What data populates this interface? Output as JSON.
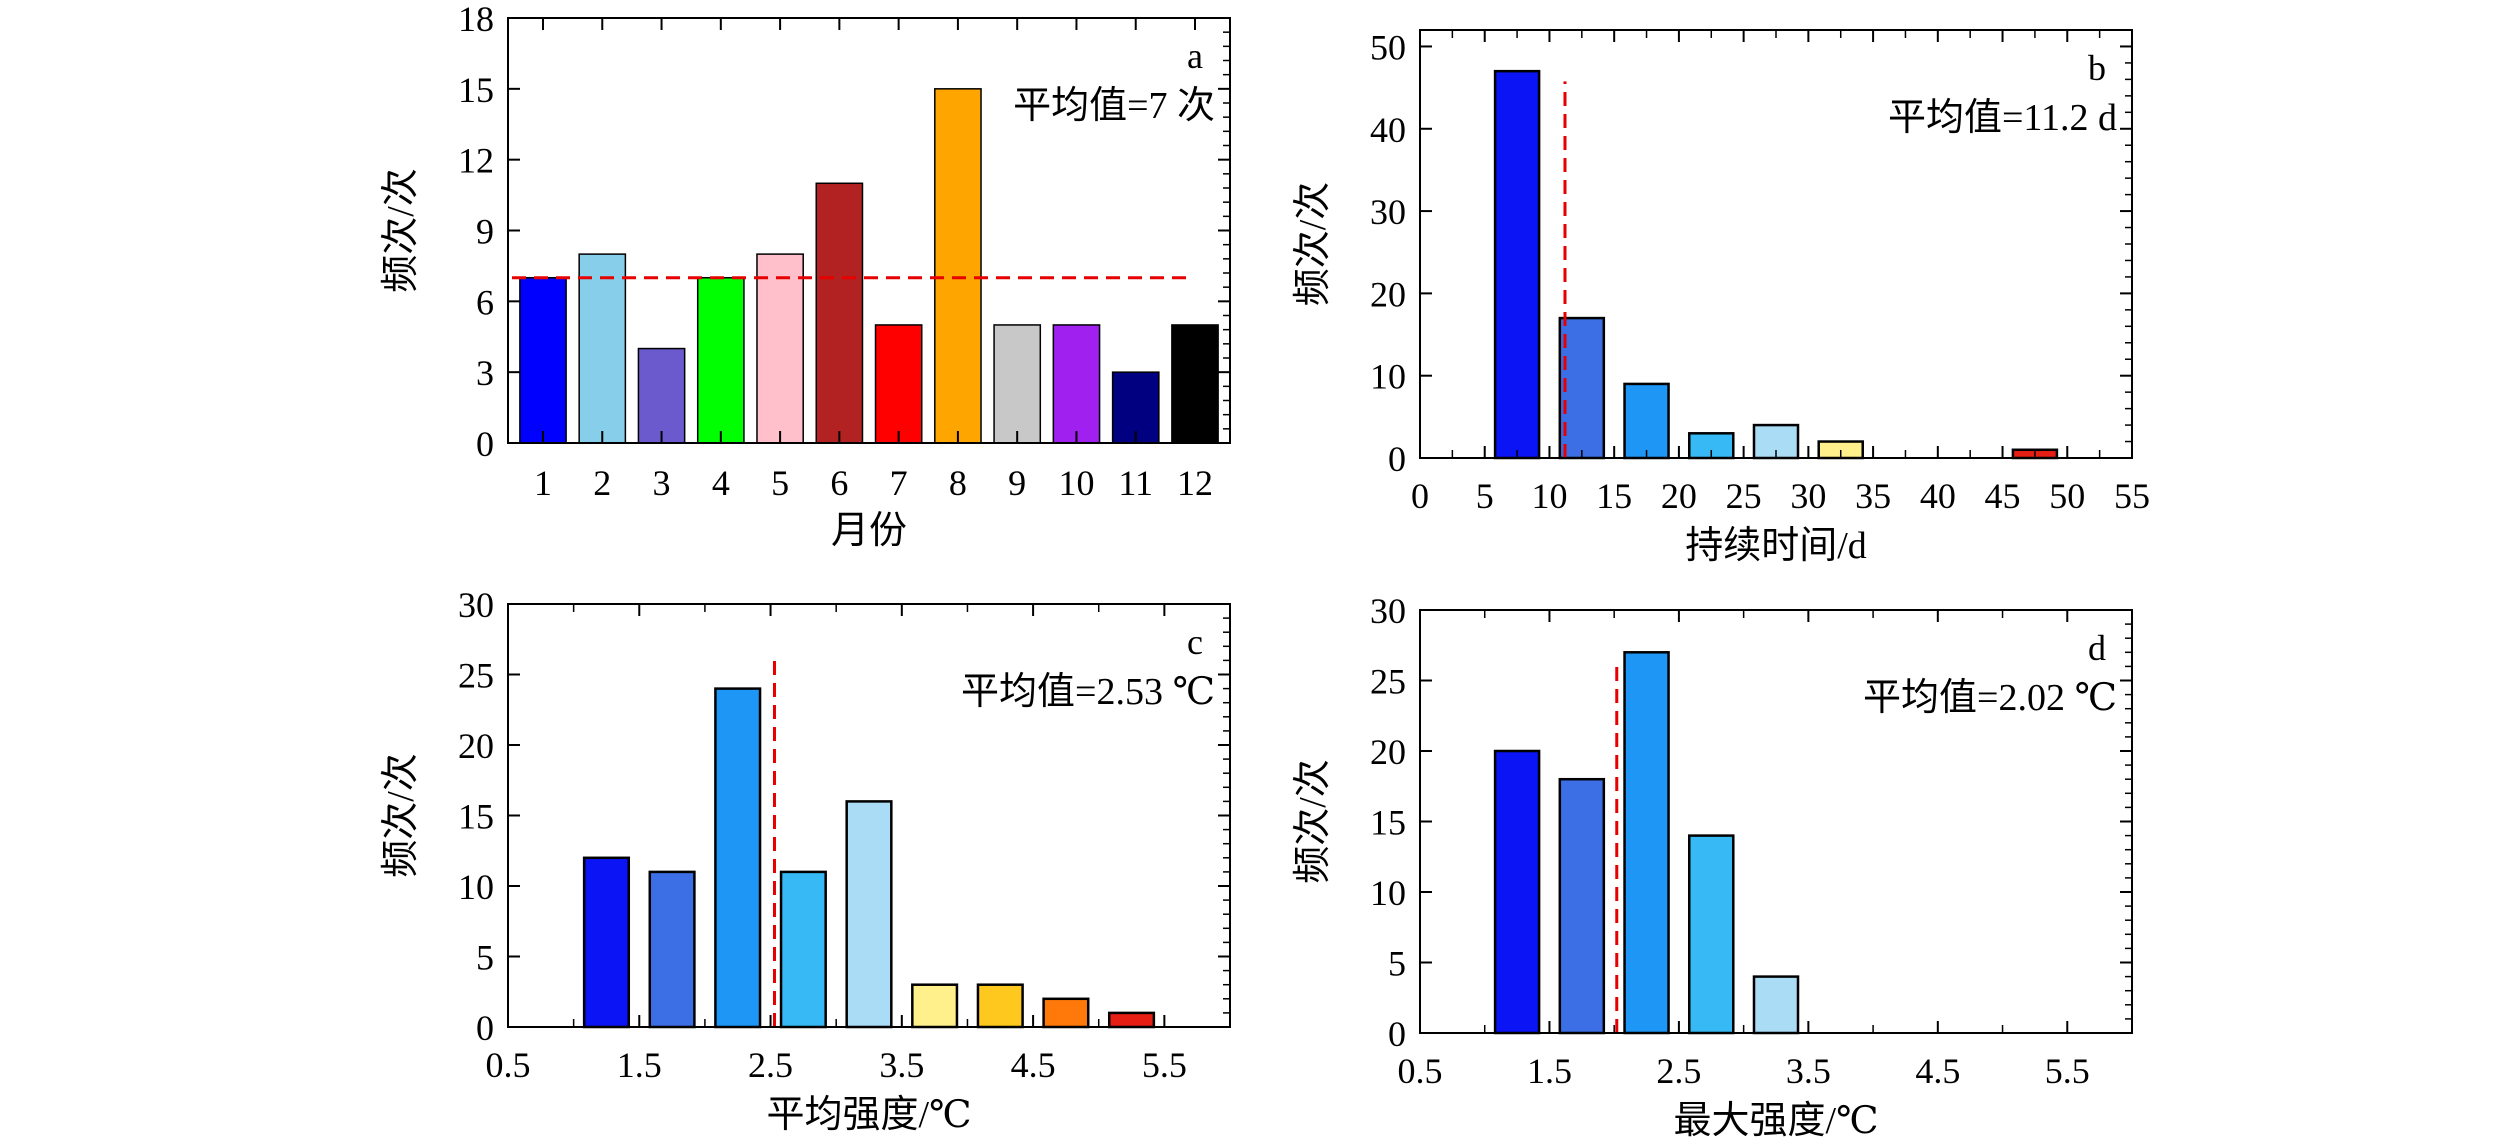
{
  "chart_data": [
    {
      "panel_label": "a",
      "type": "bar",
      "xlabel": "月份",
      "ylabel": "频次/次",
      "mean_label": "平均值=7 次",
      "mean_value": 7,
      "ylim": [
        0,
        18
      ],
      "yticks": [
        0,
        3,
        6,
        9,
        12,
        15,
        18
      ],
      "categories": [
        "1",
        "2",
        "3",
        "4",
        "5",
        "6",
        "7",
        "8",
        "9",
        "10",
        "11",
        "12"
      ],
      "values": [
        7,
        8,
        4,
        7,
        8,
        11,
        5,
        15,
        5,
        5,
        3,
        5
      ],
      "colors": [
        "#0000ff",
        "#87ceeb",
        "#6a5acd",
        "#00ff00",
        "#ffc0cb",
        "#b22222",
        "#ff0000",
        "#ffa500",
        "#c8c8c8",
        "#a020f0",
        "#000080",
        "#000000"
      ]
    },
    {
      "panel_label": "b",
      "type": "bar",
      "xlabel": "持续时间/d",
      "ylabel": "频次/次",
      "mean_label": "平均值=11.2 d",
      "mean_value": 11.2,
      "xlim": [
        0,
        55
      ],
      "xticks": [
        0,
        5,
        10,
        15,
        20,
        25,
        30,
        35,
        40,
        45,
        50,
        55
      ],
      "ylim": [
        0,
        52
      ],
      "yticks": [
        0,
        10,
        20,
        30,
        40,
        50
      ],
      "bars": [
        {
          "from": 5.8,
          "to": 9.2,
          "value": 47,
          "color": "#0a14f5"
        },
        {
          "from": 10.8,
          "to": 14.2,
          "value": 17,
          "color": "#3c6ee6"
        },
        {
          "from": 15.8,
          "to": 19.2,
          "value": 9,
          "color": "#1e96f5"
        },
        {
          "from": 20.8,
          "to": 24.2,
          "value": 3,
          "color": "#37b9f5"
        },
        {
          "from": 25.8,
          "to": 29.2,
          "value": 4,
          "color": "#aadcf5"
        },
        {
          "from": 30.8,
          "to": 34.2,
          "value": 2,
          "color": "#fff08c"
        },
        {
          "from": 35.8,
          "to": 39.2,
          "value": 0,
          "color": "#ffc81e"
        },
        {
          "from": 40.8,
          "to": 44.2,
          "value": 0,
          "color": "#ff9614"
        },
        {
          "from": 45.8,
          "to": 49.2,
          "value": 1,
          "color": "#e61e14"
        },
        {
          "from": 50.8,
          "to": 54.2,
          "value": 0,
          "color": "#e61e14"
        }
      ]
    },
    {
      "panel_label": "c",
      "type": "bar",
      "xlabel": "平均强度/℃",
      "ylabel": "频次/次",
      "mean_label": "平均值=2.53 ℃",
      "mean_value": 2.53,
      "xlim": [
        0.5,
        6
      ],
      "xticks": [
        0.5,
        1.5,
        2.5,
        3.5,
        4.5,
        5.5
      ],
      "ylim": [
        0,
        30
      ],
      "yticks": [
        0,
        5,
        10,
        15,
        20,
        25,
        30
      ],
      "bars": [
        {
          "from": 1.08,
          "to": 1.42,
          "value": 12,
          "color": "#0a14f5"
        },
        {
          "from": 1.58,
          "to": 1.92,
          "value": 11,
          "color": "#3c6ee6"
        },
        {
          "from": 2.08,
          "to": 2.42,
          "value": 24,
          "color": "#1e96f5"
        },
        {
          "from": 2.58,
          "to": 2.92,
          "value": 11,
          "color": "#37b9f5"
        },
        {
          "from": 3.08,
          "to": 3.42,
          "value": 16,
          "color": "#aadcf5"
        },
        {
          "from": 3.58,
          "to": 3.92,
          "value": 3,
          "color": "#fff08c"
        },
        {
          "from": 4.08,
          "to": 4.42,
          "value": 3,
          "color": "#ffc81e"
        },
        {
          "from": 4.58,
          "to": 4.92,
          "value": 2,
          "color": "#ff780a"
        },
        {
          "from": 5.08,
          "to": 5.42,
          "value": 1,
          "color": "#e61e14"
        }
      ]
    },
    {
      "panel_label": "d",
      "type": "bar",
      "xlabel": "最大强度/℃",
      "ylabel": "频次/次",
      "mean_label": "平均值=2.02 ℃",
      "mean_value": 2.02,
      "xlim": [
        0.5,
        6
      ],
      "xticks": [
        0.5,
        1.5,
        2.5,
        3.5,
        4.5,
        5.5
      ],
      "ylim": [
        0,
        30
      ],
      "yticks": [
        0,
        5,
        10,
        15,
        20,
        25,
        30
      ],
      "bars": [
        {
          "from": 1.08,
          "to": 1.42,
          "value": 20,
          "color": "#0a14f5"
        },
        {
          "from": 1.58,
          "to": 1.92,
          "value": 18,
          "color": "#3c6ee6"
        },
        {
          "from": 2.08,
          "to": 2.42,
          "value": 27,
          "color": "#1e96f5"
        },
        {
          "from": 2.58,
          "to": 2.92,
          "value": 14,
          "color": "#37b9f5"
        },
        {
          "from": 3.08,
          "to": 3.42,
          "value": 4,
          "color": "#aadcf5"
        }
      ]
    }
  ],
  "colors": {
    "mean_line": "#e60000",
    "bar_stroke": "#000000",
    "axis": "#000000"
  }
}
